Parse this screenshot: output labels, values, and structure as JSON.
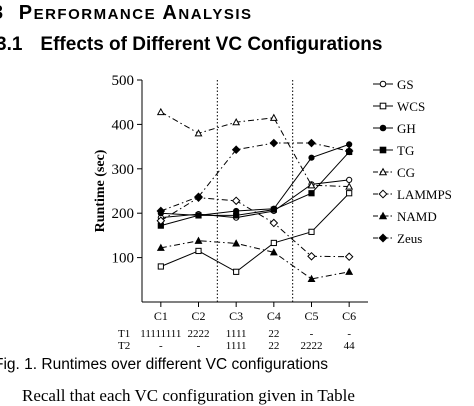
{
  "section": {
    "number": "3",
    "title_first": "P",
    "title_rest": "ERFORMANCE",
    "title_first2": "A",
    "title_rest2": "NALYSIS"
  },
  "subsection": {
    "number": "3.1",
    "title": "Effects of Different VC Configurations"
  },
  "caption": "Fig. 1. Runtimes over different VC configurations",
  "body_text": "Recall that each VC configuration given in Table",
  "chart_data": {
    "type": "line",
    "categories": [
      "C1",
      "C2",
      "C3",
      "C4",
      "C5",
      "C6"
    ],
    "ylabel": "Runtime (sec)",
    "ylim": [
      0,
      500
    ],
    "yticks": [
      100,
      200,
      300,
      400,
      500
    ],
    "grid": false,
    "legend_position": "right",
    "dividers_after": [
      "C2",
      "C4"
    ],
    "config_rows": [
      {
        "label": "T1",
        "values": [
          "11111111",
          "2222",
          "1111",
          "22",
          "-",
          "-"
        ]
      },
      {
        "label": "T2",
        "values": [
          "-",
          "-",
          "1111",
          "22",
          "2222",
          "44"
        ]
      }
    ],
    "series": [
      {
        "name": "GS",
        "marker": "circle-open",
        "line": "solid",
        "values": [
          190,
          198,
          190,
          205,
          265,
          275
        ]
      },
      {
        "name": "WCS",
        "marker": "square-open",
        "line": "solid",
        "values": [
          80,
          115,
          68,
          133,
          158,
          245
        ]
      },
      {
        "name": "GH",
        "marker": "circle-filled",
        "line": "solid",
        "values": [
          200,
          195,
          205,
          210,
          325,
          355
        ]
      },
      {
        "name": "TG",
        "marker": "square-filled",
        "line": "solid",
        "values": [
          172,
          195,
          195,
          208,
          245,
          338
        ]
      },
      {
        "name": "CG",
        "marker": "triangle-open",
        "line": "dashdot",
        "values": [
          428,
          380,
          405,
          415,
          263,
          260
        ]
      },
      {
        "name": "LAMMPS",
        "marker": "diamond-open",
        "line": "dashdot",
        "values": [
          183,
          235,
          228,
          178,
          103,
          102
        ]
      },
      {
        "name": "NAMD",
        "marker": "triangle-filled",
        "line": "dashdot",
        "values": [
          122,
          138,
          132,
          112,
          52,
          68
        ]
      },
      {
        "name": "Zeus",
        "marker": "diamond-filled",
        "line": "dashdot",
        "values": [
          205,
          237,
          343,
          358,
          358,
          340
        ]
      }
    ]
  }
}
